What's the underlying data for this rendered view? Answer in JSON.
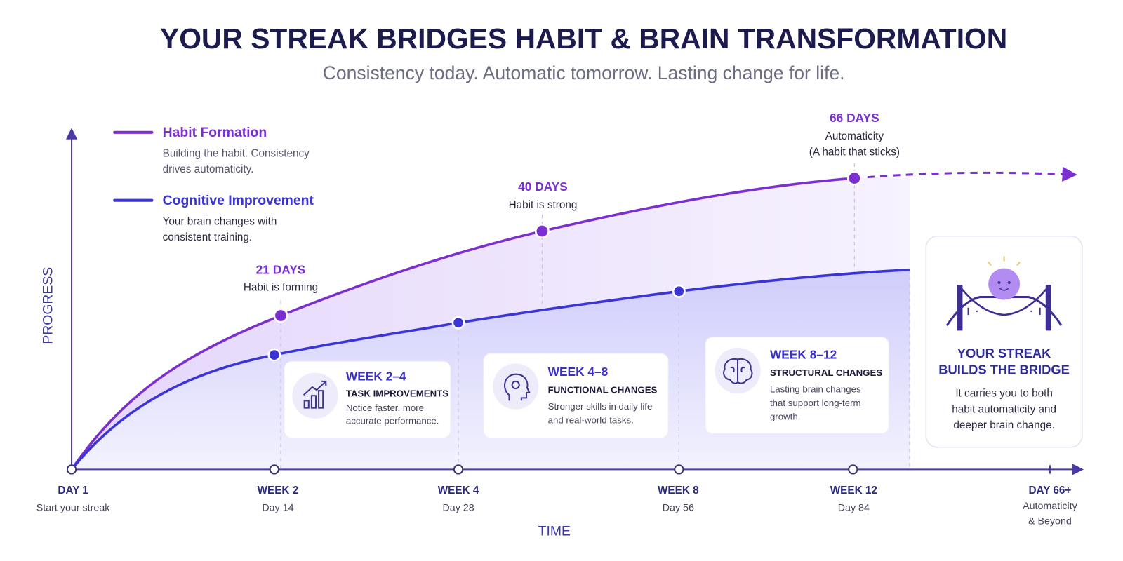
{
  "header": {
    "title": "YOUR STREAK BRIDGES HABIT & BRAIN TRANSFORMATION",
    "subtitle": "Consistency today. Automatic tomorrow. Lasting change for life."
  },
  "legend": [
    {
      "name": "Habit Formation",
      "description": [
        "Building the habit. Consistency",
        "drives automaticity."
      ]
    },
    {
      "name": "Cognitive Improvement",
      "description": [
        "Your brain changes with",
        "consistent training."
      ]
    }
  ],
  "axes": {
    "y_label": "PROGRESS",
    "x_label": "TIME"
  },
  "milestones": [
    {
      "days": "21 DAYS",
      "notes": [
        "Habit is forming"
      ]
    },
    {
      "days": "40 DAYS",
      "notes": [
        "Habit is strong"
      ]
    },
    {
      "days": "66 DAYS",
      "notes": [
        "Automaticity",
        "(A habit that sticks)"
      ]
    }
  ],
  "timeline": [
    {
      "label": "DAY 1",
      "sub": [
        "Start your streak"
      ]
    },
    {
      "label": "WEEK 2",
      "sub": [
        "Day 14"
      ]
    },
    {
      "label": "WEEK 4",
      "sub": [
        "Day 28"
      ]
    },
    {
      "label": "WEEK 8",
      "sub": [
        "Day 56"
      ]
    },
    {
      "label": "WEEK 12",
      "sub": [
        "Day 84"
      ]
    },
    {
      "label": "DAY 66+",
      "sub": [
        "Automaticity",
        "& Beyond"
      ]
    }
  ],
  "cards": [
    {
      "title": "WEEK 2–4",
      "subtitle": "TASK IMPROVEMENTS",
      "text": [
        "Notice faster, more",
        "accurate performance."
      ]
    },
    {
      "title": "WEEK 4–8",
      "subtitle": "FUNCTIONAL CHANGES",
      "text": [
        "Stronger skills in daily life",
        "and real-world tasks."
      ]
    },
    {
      "title": "WEEK 8–12",
      "subtitle": "STRUCTURAL CHANGES",
      "text": [
        "Lasting brain changes",
        "that support long-term",
        "growth."
      ]
    }
  ],
  "bridge_card": {
    "title": [
      "YOUR STREAK",
      "BUILDS THE BRIDGE"
    ],
    "text": [
      "It carries you to both",
      "habit automaticity and",
      "deeper brain change."
    ]
  }
}
